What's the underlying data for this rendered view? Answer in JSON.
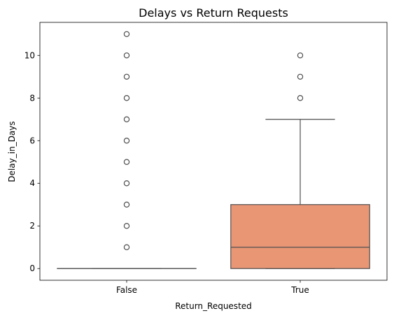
{
  "chart_data": {
    "type": "box",
    "title": "Delays vs Return Requests",
    "xlabel": "Return_Requested",
    "ylabel": "Delay_in_Days",
    "ylim": [
      -0.55,
      11.55
    ],
    "yticks": [
      0,
      2,
      4,
      6,
      8,
      10
    ],
    "categories": [
      "False",
      "True"
    ],
    "colors": [
      "#91c8e4",
      "#e99675"
    ],
    "grid": false,
    "boxes": [
      {
        "category": "False",
        "min": 0,
        "q1": 0,
        "median": 0,
        "q3": 0,
        "max": 0,
        "fliers": [
          1,
          2,
          3,
          4,
          5,
          6,
          7,
          8,
          9,
          10,
          11
        ]
      },
      {
        "category": "True",
        "min": 0,
        "q1": 0,
        "median": 1,
        "q3": 3,
        "max": 7,
        "fliers": [
          8,
          9,
          10
        ]
      }
    ]
  }
}
